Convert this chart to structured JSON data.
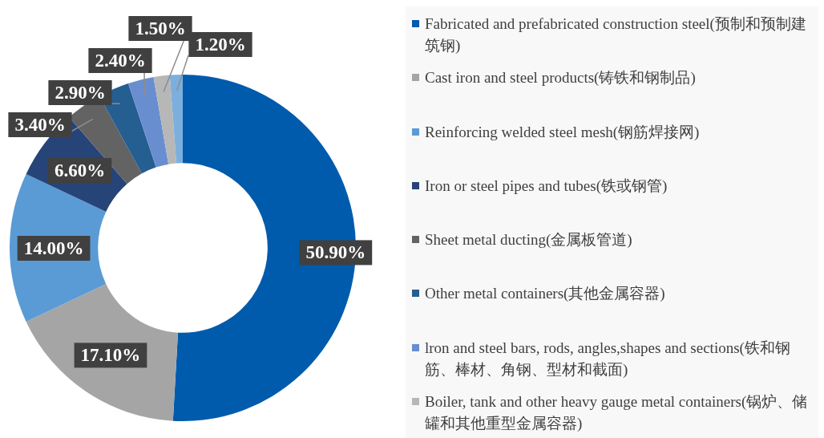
{
  "chart_data": {
    "type": "donut",
    "categories": [
      "Fabricated and prefabricated construction steel(预制和预制建筑钢)",
      "Cast iron and steel products(铸铁和钢制品)",
      "Reinforcing welded steel mesh(钢筋焊接网)",
      "Iron or steel pipes and tubes(铁或钢管)",
      "Sheet metal ducting(金属板管道)",
      "Other metal containers(其他金属容器)",
      "lron and steel bars, rods, angles,shapes and sections(铁和钢筋、棒材、角钢、型材和截面)",
      "Boiler, tank and other heavy gauge metal containers(锅炉、储罐和其他重型金属容器)",
      null
    ],
    "values": [
      50.9,
      17.1,
      14.0,
      6.6,
      3.4,
      2.9,
      2.4,
      1.5,
      1.2
    ],
    "colors": [
      "#005bac",
      "#a5a5a5",
      "#5b9bd5",
      "#264478",
      "#636363",
      "#255e91",
      "#698ed0",
      "#b7b7b7",
      "#7cafdd"
    ],
    "value_labels": [
      "50.90%",
      "17.10%",
      "14.00%",
      "6.60%",
      "3.40%",
      "2.90%",
      "2.40%",
      "1.50%",
      "1.20%"
    ],
    "legend": "right"
  }
}
